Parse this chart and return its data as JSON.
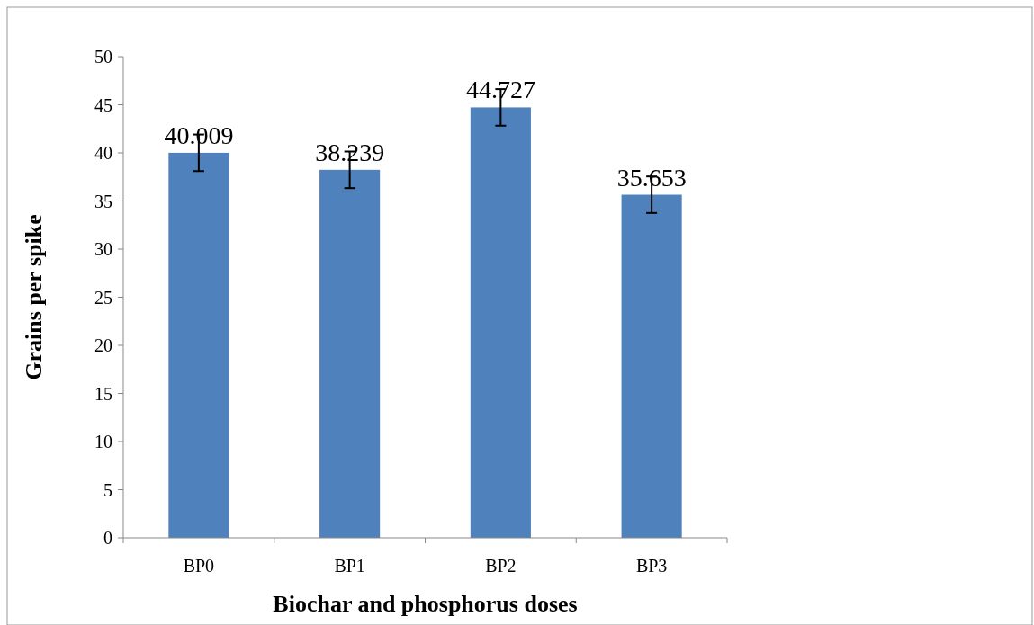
{
  "chart_data": {
    "type": "bar",
    "xlabel": "Biochar and phosphorus doses",
    "ylabel": "Grains per spike",
    "categories": [
      "BP0",
      "BP1",
      "BP2",
      "BP3"
    ],
    "values": [
      40.009,
      38.239,
      44.727,
      35.653
    ],
    "errors": [
      1.9,
      1.9,
      1.9,
      1.9
    ],
    "color": "#4f81bd",
    "data_labels": true,
    "ylim": [
      0,
      50
    ],
    "yticks": [
      0,
      5,
      10,
      15,
      20,
      25,
      30,
      35,
      40,
      45,
      50
    ]
  }
}
